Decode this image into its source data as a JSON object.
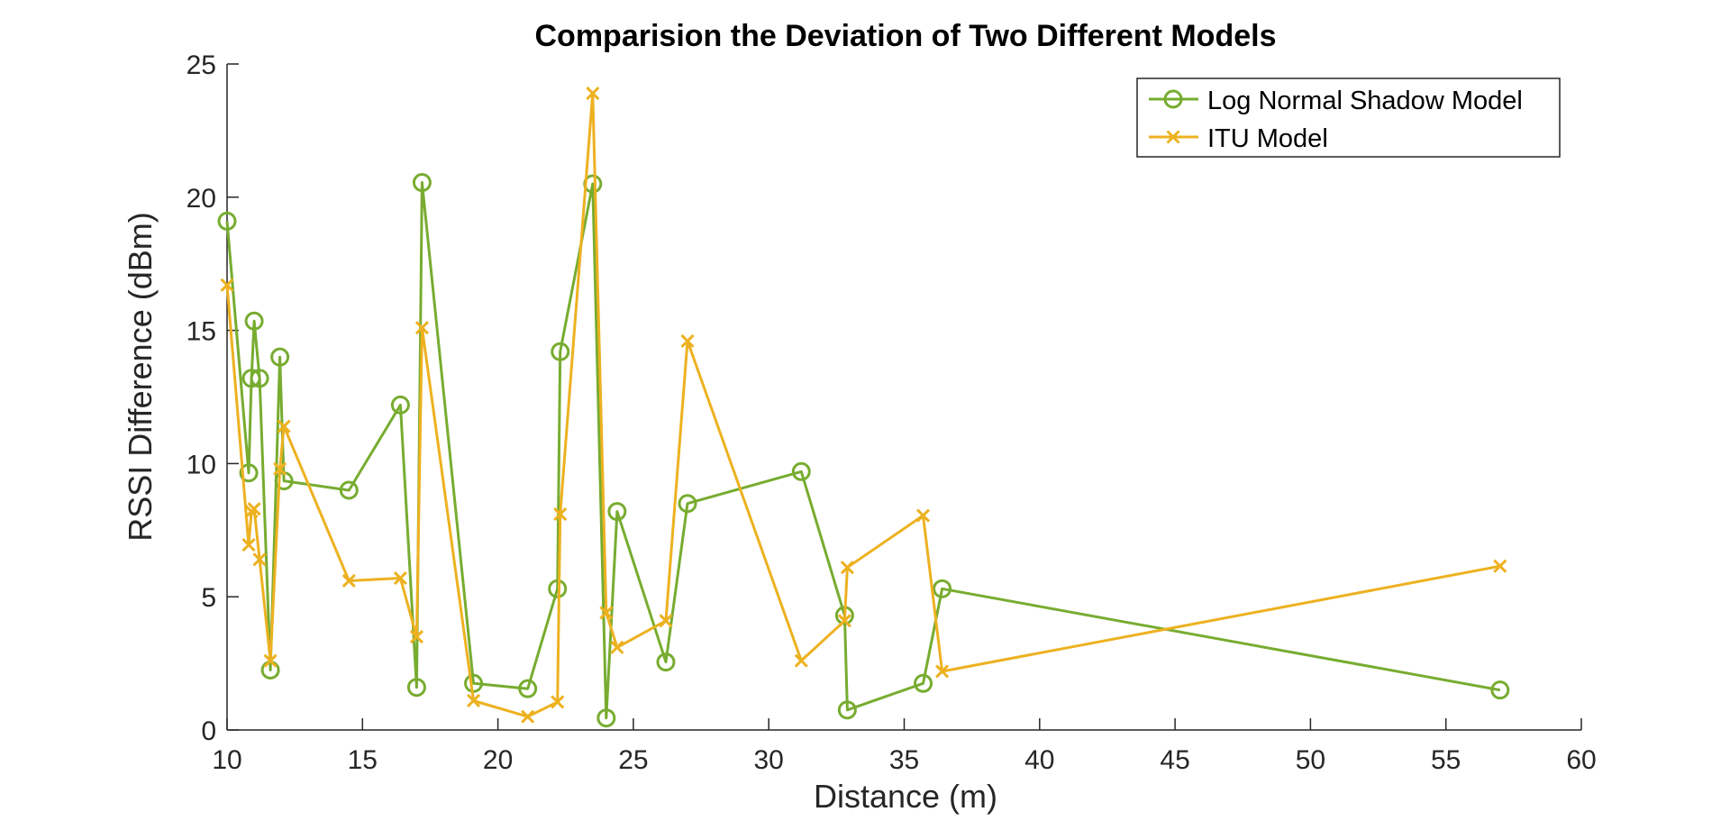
{
  "chart_data": {
    "type": "line",
    "title": "Comparision the Deviation of Two Different Models",
    "xlabel": "Distance (m)",
    "ylabel": "RSSI Difference (dBm)",
    "xlim": [
      10,
      60
    ],
    "ylim": [
      0,
      25
    ],
    "xticks": [
      10,
      15,
      20,
      25,
      30,
      35,
      40,
      45,
      50,
      55,
      60
    ],
    "yticks": [
      0,
      5,
      10,
      15,
      20,
      25
    ],
    "grid": false,
    "legend_position": "top-right",
    "series": [
      {
        "name": "Log Normal Shadow Model",
        "color": "#77AC30",
        "marker": "circle",
        "x": [
          10.0,
          10.8,
          10.9,
          11.0,
          11.2,
          11.6,
          11.95,
          12.1,
          14.5,
          16.4,
          17.0,
          17.2,
          19.1,
          21.1,
          22.2,
          22.3,
          23.5,
          24.0,
          24.4,
          26.2,
          27.0,
          31.2,
          32.8,
          32.9,
          35.7,
          36.4,
          57.0
        ],
        "y": [
          19.1,
          9.65,
          13.2,
          15.35,
          13.2,
          2.25,
          14.0,
          9.35,
          9.0,
          12.2,
          1.6,
          20.55,
          1.75,
          1.55,
          5.3,
          14.2,
          20.5,
          0.45,
          8.2,
          2.55,
          8.5,
          9.7,
          4.3,
          0.75,
          1.75,
          5.3,
          1.5
        ]
      },
      {
        "name": "ITU Model",
        "color": "#EDB120",
        "marker": "x",
        "x": [
          10.0,
          10.8,
          10.9,
          11.0,
          11.2,
          11.6,
          11.95,
          12.1,
          14.5,
          16.4,
          17.0,
          17.2,
          19.1,
          21.1,
          22.2,
          22.3,
          23.5,
          24.0,
          24.4,
          26.2,
          27.0,
          31.2,
          32.8,
          32.9,
          35.7,
          36.4,
          57.0
        ],
        "y": [
          16.7,
          6.95,
          8.2,
          8.3,
          6.4,
          2.6,
          9.8,
          11.4,
          5.6,
          5.7,
          3.5,
          15.1,
          1.1,
          0.5,
          1.05,
          8.1,
          23.9,
          4.4,
          3.1,
          4.1,
          14.6,
          2.6,
          4.1,
          6.1,
          8.05,
          2.2,
          6.15
        ]
      }
    ]
  }
}
